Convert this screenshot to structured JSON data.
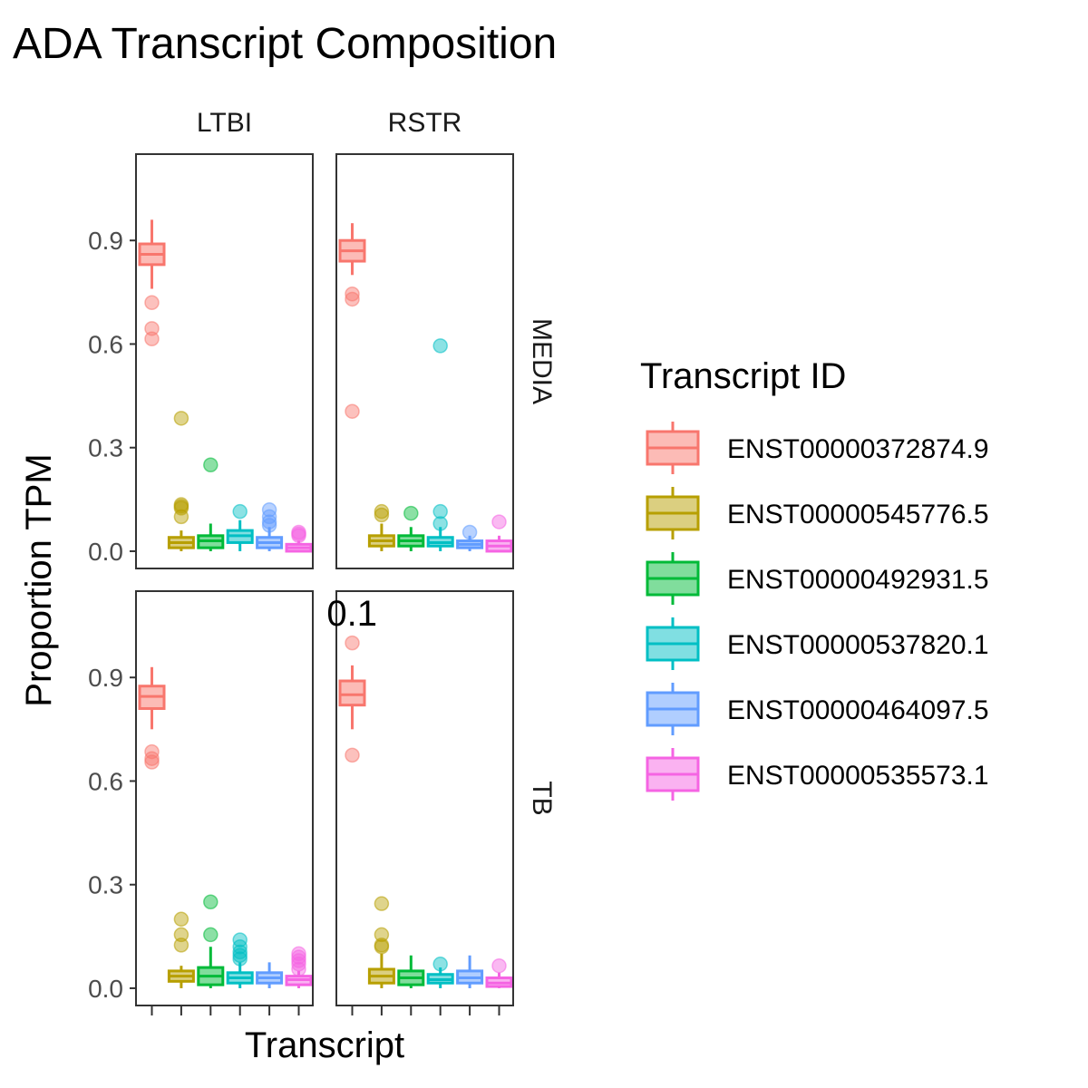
{
  "chart_data": {
    "type": "box",
    "title": "ADA Transcript Composition",
    "xlabel": "Transcript",
    "ylabel": "Proportion TPM",
    "ylim": [
      -0.05,
      1.15
    ],
    "yticks": [
      0.0,
      0.3,
      0.6,
      0.9
    ],
    "ytick_labels": [
      "0.0",
      "0.3",
      "0.6",
      "0.9"
    ],
    "facet_cols": [
      "LTBI",
      "RSTR"
    ],
    "facet_rows": [
      "MEDIA",
      "TB"
    ],
    "stray_text": "0.1",
    "legend": {
      "title": "Transcript ID",
      "placement": "right",
      "entries": [
        {
          "label": "ENST00000372874.9",
          "color": "#F8766D"
        },
        {
          "label": "ENST00000545776.5",
          "color": "#B79F00"
        },
        {
          "label": "ENST00000492931.5",
          "color": "#00BA38"
        },
        {
          "label": "ENST00000537820.1",
          "color": "#00BFC4"
        },
        {
          "label": "ENST00000464097.5",
          "color": "#619CFF"
        },
        {
          "label": "ENST00000535573.1",
          "color": "#F564E3"
        }
      ]
    },
    "panels": [
      {
        "col": "LTBI",
        "row": "MEDIA",
        "boxes": [
          {
            "q1": 0.83,
            "median": 0.86,
            "q3": 0.89,
            "lo": 0.76,
            "hi": 0.96,
            "outliers": [
              0.72,
              0.645,
              0.615
            ]
          },
          {
            "q1": 0.01,
            "median": 0.025,
            "q3": 0.04,
            "lo": 0.0,
            "hi": 0.06,
            "outliers": [
              0.385,
              0.135,
              0.13,
              0.125,
              0.1
            ]
          },
          {
            "q1": 0.01,
            "median": 0.03,
            "q3": 0.045,
            "lo": 0.0,
            "hi": 0.08,
            "outliers": [
              0.25
            ]
          },
          {
            "q1": 0.025,
            "median": 0.045,
            "q3": 0.06,
            "lo": 0.0,
            "hi": 0.09,
            "outliers": [
              0.115
            ]
          },
          {
            "q1": 0.01,
            "median": 0.025,
            "q3": 0.04,
            "lo": 0.0,
            "hi": 0.07,
            "outliers": [
              0.12,
              0.1,
              0.085,
              0.075
            ]
          },
          {
            "q1": 0.0,
            "median": 0.01,
            "q3": 0.02,
            "lo": 0.0,
            "hi": 0.03,
            "outliers": [
              0.055,
              0.05,
              0.045
            ]
          }
        ]
      },
      {
        "col": "RSTR",
        "row": "MEDIA",
        "boxes": [
          {
            "q1": 0.84,
            "median": 0.87,
            "q3": 0.9,
            "lo": 0.8,
            "hi": 0.95,
            "outliers": [
              0.745,
              0.73,
              0.405
            ]
          },
          {
            "q1": 0.015,
            "median": 0.03,
            "q3": 0.045,
            "lo": 0.0,
            "hi": 0.08,
            "outliers": [
              0.115,
              0.105
            ]
          },
          {
            "q1": 0.015,
            "median": 0.03,
            "q3": 0.045,
            "lo": 0.0,
            "hi": 0.07,
            "outliers": [
              0.11
            ]
          },
          {
            "q1": 0.015,
            "median": 0.025,
            "q3": 0.04,
            "lo": 0.0,
            "hi": 0.07,
            "outliers": [
              0.595,
              0.115,
              0.08
            ]
          },
          {
            "q1": 0.01,
            "median": 0.02,
            "q3": 0.03,
            "lo": 0.0,
            "hi": 0.045,
            "outliers": [
              0.055
            ]
          },
          {
            "q1": 0.0,
            "median": 0.015,
            "q3": 0.03,
            "lo": 0.0,
            "hi": 0.045,
            "outliers": [
              0.085
            ]
          }
        ]
      },
      {
        "col": "LTBI",
        "row": "TB",
        "boxes": [
          {
            "q1": 0.81,
            "median": 0.845,
            "q3": 0.875,
            "lo": 0.75,
            "hi": 0.93,
            "outliers": [
              0.685,
              0.665,
              0.655
            ]
          },
          {
            "q1": 0.02,
            "median": 0.035,
            "q3": 0.05,
            "lo": 0.0,
            "hi": 0.065,
            "outliers": [
              0.2,
              0.155,
              0.125
            ]
          },
          {
            "q1": 0.01,
            "median": 0.035,
            "q3": 0.06,
            "lo": 0.0,
            "hi": 0.12,
            "outliers": [
              0.25,
              0.155
            ]
          },
          {
            "q1": 0.015,
            "median": 0.03,
            "q3": 0.045,
            "lo": 0.0,
            "hi": 0.075,
            "outliers": [
              0.14,
              0.12,
              0.105,
              0.095,
              0.085
            ]
          },
          {
            "q1": 0.015,
            "median": 0.03,
            "q3": 0.045,
            "lo": 0.0,
            "hi": 0.075,
            "outliers": []
          },
          {
            "q1": 0.01,
            "median": 0.025,
            "q3": 0.035,
            "lo": 0.0,
            "hi": 0.05,
            "outliers": [
              0.1,
              0.09,
              0.08,
              0.07,
              0.055
            ]
          }
        ]
      },
      {
        "col": "RSTR",
        "row": "TB",
        "boxes": [
          {
            "q1": 0.82,
            "median": 0.85,
            "q3": 0.89,
            "lo": 0.75,
            "hi": 0.935,
            "outliers": [
              1.0,
              0.675
            ]
          },
          {
            "q1": 0.015,
            "median": 0.035,
            "q3": 0.055,
            "lo": 0.0,
            "hi": 0.1,
            "outliers": [
              0.245,
              0.155,
              0.125,
              0.12
            ]
          },
          {
            "q1": 0.01,
            "median": 0.03,
            "q3": 0.05,
            "lo": 0.0,
            "hi": 0.095,
            "outliers": []
          },
          {
            "q1": 0.015,
            "median": 0.025,
            "q3": 0.04,
            "lo": 0.0,
            "hi": 0.06,
            "outliers": [
              0.07
            ]
          },
          {
            "q1": 0.015,
            "median": 0.03,
            "q3": 0.05,
            "lo": 0.0,
            "hi": 0.095,
            "outliers": []
          },
          {
            "q1": 0.005,
            "median": 0.015,
            "q3": 0.03,
            "lo": 0.0,
            "hi": 0.045,
            "outliers": [
              0.065
            ]
          }
        ]
      }
    ]
  }
}
